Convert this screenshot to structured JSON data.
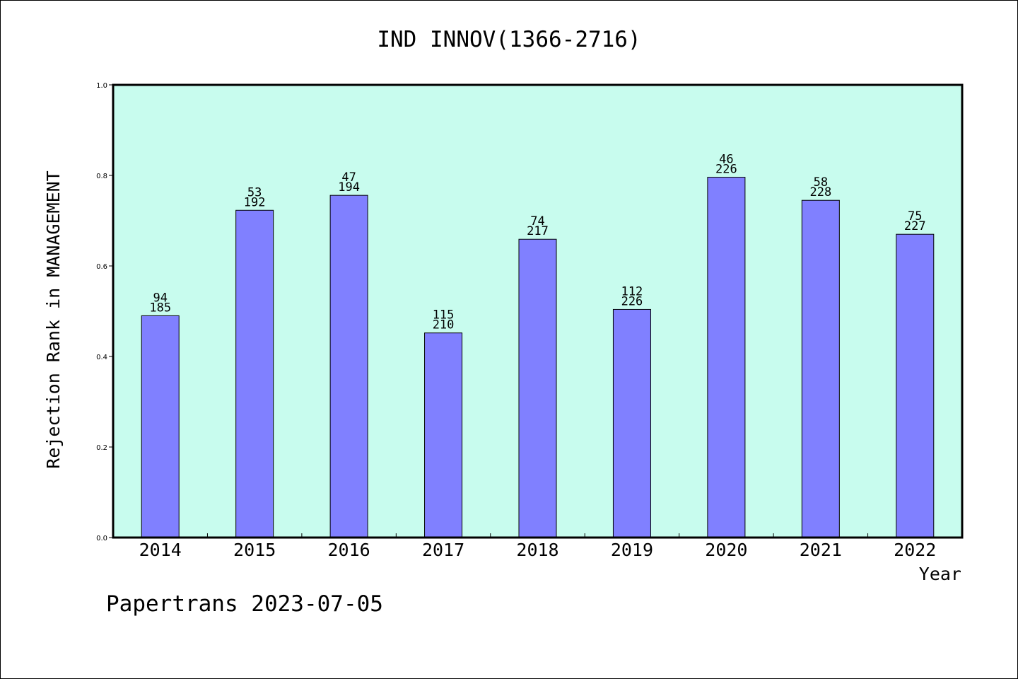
{
  "footer": {
    "text": "Papertrans 2023-07-05"
  },
  "chart_data": {
    "type": "bar",
    "title": "IND INNOV(1366-2716)",
    "xlabel": "Year",
    "ylabel": "Rejection Rank in MANAGEMENT",
    "ylim": [
      0,
      1.0
    ],
    "yticks": [
      "0.0",
      "0.2",
      "0.4",
      "0.6",
      "0.8",
      "1.0"
    ],
    "categories": [
      "2014",
      "2015",
      "2016",
      "2017",
      "2018",
      "2019",
      "2020",
      "2021",
      "2022"
    ],
    "values": [
      0.49,
      0.723,
      0.756,
      0.452,
      0.659,
      0.504,
      0.796,
      0.745,
      0.67
    ],
    "label_top": [
      "94",
      "53",
      "47",
      "115",
      "74",
      "112",
      "46",
      "58",
      "75"
    ],
    "label_bottom": [
      "185",
      "192",
      "194",
      "210",
      "217",
      "226",
      "226",
      "228",
      "227"
    ],
    "grid": false,
    "colors": {
      "plot_background": "#c8fcee",
      "bar_fill": "#8080ff",
      "bar_stroke": "#000000"
    }
  }
}
